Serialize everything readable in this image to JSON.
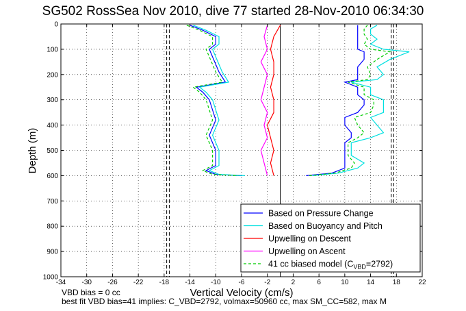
{
  "title": "SG502 RossSea Nov 2010, dive 77 started 28-Nov-2010 06:34:30",
  "footer": {
    "line1": "VBD bias = 0 cc",
    "line2": "best fit VBD bias=41 implies: C_VBD=2792, volmax=50960 cc, max SM_CC=582, max M"
  },
  "chart_data": {
    "type": "line",
    "xlabel": "Vertical Velocity (cm/s)",
    "ylabel": "Depth (m)",
    "xlim": [
      -34,
      22
    ],
    "ylim": [
      0,
      1000
    ],
    "y_reversed": true,
    "grid": true,
    "xticks": [
      -34,
      -30,
      -26,
      -22,
      -18,
      -14,
      -10,
      -6,
      -2,
      2,
      6,
      10,
      14,
      18,
      22
    ],
    "yticks": [
      0,
      100,
      200,
      300,
      400,
      500,
      600,
      700,
      800,
      900,
      1000
    ],
    "legend_position": "bottom-right",
    "reference_lines": [
      {
        "orientation": "vertical",
        "x": -17.2,
        "style": "dashed",
        "color": "#000000"
      },
      {
        "orientation": "vertical",
        "x": -17.6,
        "style": "dashed",
        "color": "#000000"
      },
      {
        "orientation": "vertical",
        "x": 17.2,
        "style": "dashed",
        "color": "#000000"
      },
      {
        "orientation": "vertical",
        "x": 17.6,
        "style": "dashed",
        "color": "#000000"
      },
      {
        "orientation": "vertical",
        "x": 0,
        "style": "solid",
        "color": "#000000"
      }
    ],
    "series": [
      {
        "name": "Based on Pressure Change",
        "color": "#0000ff",
        "style": "solid",
        "segments": [
          {
            "y": [
              5,
              25,
              50,
              80,
              100,
              130,
              160,
              190,
              210,
              230,
              250,
              270,
              300,
              340,
              380,
              410,
              440,
              470,
              500,
              530,
              560,
              580,
              595,
              600
            ],
            "x": [
              -14,
              -12,
              -10,
              -10,
              -11,
              -10.5,
              -10,
              -9.5,
              -9,
              -8.5,
              -13,
              -12,
              -11,
              -10.5,
              -10,
              -10.5,
              -11,
              -10.5,
              -10,
              -10,
              -10,
              -11.5,
              -10,
              -6
            ]
          },
          {
            "y": [
              600,
              590,
              570,
              550,
              520,
              490,
              470,
              450,
              430,
              400,
              370,
              350,
              320,
              300,
              280,
              250,
              230,
              220,
              200,
              170,
              140,
              110,
              100,
              80,
              60,
              40,
              20,
              5
            ],
            "x": [
              4,
              8,
              10,
              10,
              10,
              10,
              10,
              11,
              11,
              10,
              10,
              12,
              13,
              13,
              12,
              12,
              10,
              12,
              12,
              12,
              13,
              13,
              12,
              12,
              12,
              12,
              12,
              12
            ]
          }
        ]
      },
      {
        "name": "Based on Buoyancy and Pitch",
        "color": "#00e0e0",
        "style": "solid",
        "segments": [
          {
            "y": [
              5,
              25,
              50,
              80,
              100,
              130,
              160,
              190,
              210,
              230,
              250,
              270,
              300,
              340,
              380,
              410,
              440,
              470,
              500,
              530,
              560,
              580,
              595,
              600
            ],
            "x": [
              -13.5,
              -11.5,
              -9.5,
              -9.5,
              -10.5,
              -10,
              -9.5,
              -9,
              -8.5,
              -8,
              -12.5,
              -11.5,
              -10.5,
              -10,
              -9.5,
              -10,
              -10.5,
              -10,
              -9.5,
              -9.5,
              -9.5,
              -11,
              -9.5,
              -5.5
            ]
          },
          {
            "y": [
              600,
              590,
              570,
              550,
              520,
              490,
              470,
              450,
              430,
              400,
              370,
              350,
              320,
              300,
              280,
              250,
              230,
              220,
              200,
              170,
              140,
              110,
              100,
              80,
              60,
              40,
              20,
              5
            ],
            "x": [
              5,
              9,
              12,
              13,
              11,
              11,
              11,
              14,
              16,
              15,
              14,
              16,
              16,
              16,
              14,
              14,
              11,
              15,
              16,
              15,
              17,
              20,
              16,
              14,
              15,
              14,
              14,
              15
            ]
          }
        ]
      },
      {
        "name": "Upwelling on Descent",
        "color": "#ff0000",
        "style": "solid",
        "segments": [
          {
            "y": [
              5,
              50,
              100,
              150,
              200,
              250,
              300,
              350,
              400,
              450,
              500,
              550,
              600
            ],
            "x": [
              0,
              -1,
              -1.5,
              -1,
              -1,
              -1.5,
              -1,
              -1,
              -2,
              -1.5,
              -1,
              -1.5,
              -1
            ]
          }
        ]
      },
      {
        "name": "Upwelling on Ascent",
        "color": "#ff00ff",
        "style": "solid",
        "segments": [
          {
            "y": [
              5,
              50,
              100,
              150,
              200,
              250,
              300,
              350,
              400,
              450,
              500,
              550,
              600
            ],
            "x": [
              -2,
              -2.5,
              -2,
              -3,
              -2,
              -2.5,
              -3,
              -2,
              -2.5,
              -2,
              -3,
              -2.5,
              -2
            ]
          }
        ]
      },
      {
        "name": "41 cc biased model (C_VBD=2792)",
        "color": "#00cc00",
        "style": "dashed",
        "segments": [
          {
            "y": [
              5,
              25,
              50,
              80,
              100,
              130,
              160,
              190,
              210,
              230,
              250,
              270,
              300,
              340,
              380,
              410,
              440,
              470,
              500,
              530,
              560,
              580,
              595,
              600
            ],
            "x": [
              -14.5,
              -12.5,
              -10.5,
              -10.5,
              -11.5,
              -11,
              -10.5,
              -10,
              -9.5,
              -9,
              -13.5,
              -12.5,
              -11.5,
              -11,
              -10.5,
              -11,
              -11.5,
              -11,
              -10.5,
              -10.5,
              -10.5,
              -12,
              -10.5,
              -6.5
            ]
          },
          {
            "y": [
              600,
              590,
              570,
              550,
              520,
              490,
              470,
              450,
              430,
              400,
              370,
              350,
              320,
              300,
              280,
              250,
              230,
              220,
              200,
              170,
              140,
              110,
              100,
              80,
              60,
              40,
              20,
              5
            ],
            "x": [
              4.5,
              8.5,
              11,
              11.5,
              10.5,
              10.5,
              10.5,
              12,
              13,
              12,
              11.5,
              14,
              14.5,
              14.5,
              13,
              13,
              10.5,
              13.5,
              14,
              13.5,
              15,
              17,
              14,
              13,
              13.5,
              13,
              13,
              13.5
            ]
          }
        ]
      }
    ]
  }
}
